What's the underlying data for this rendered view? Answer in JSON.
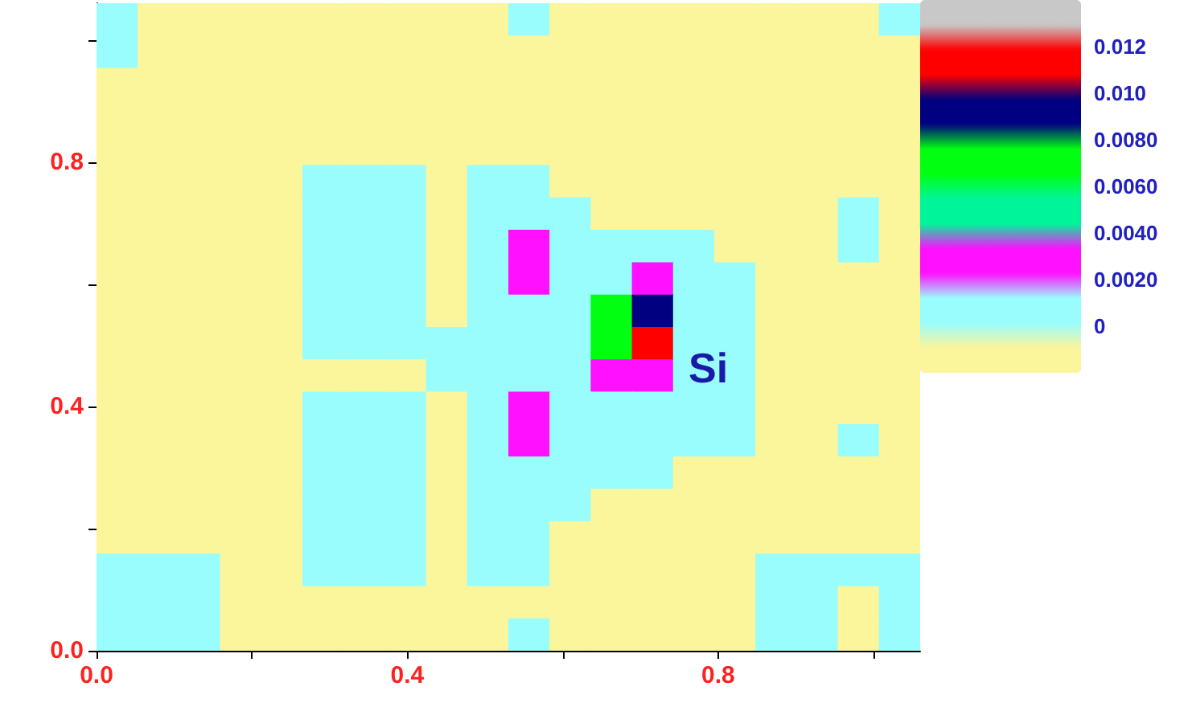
{
  "chart_data": {
    "type": "heatmap",
    "x": [
      0.0265,
      0.0795,
      0.1325,
      0.1855,
      0.2385,
      0.2915,
      0.3445,
      0.3975,
      0.4505,
      0.5035,
      0.5565,
      0.6095,
      0.6625,
      0.7155,
      0.7685,
      0.8215,
      0.8745,
      0.9275,
      0.9805,
      1.0335
    ],
    "y": [
      1.0335,
      0.9805,
      0.9275,
      0.8745,
      0.8215,
      0.7685,
      0.7155,
      0.6625,
      0.6095,
      0.5565,
      0.5035,
      0.4505,
      0.3975,
      0.3445,
      0.2915,
      0.2385,
      0.1855,
      0.1325,
      0.0795,
      0.0265
    ],
    "xlim": [
      0,
      1.06
    ],
    "xticks": [
      {
        "value": 0,
        "label": "0.0"
      },
      {
        "value": 0.2,
        "label": null
      },
      {
        "value": 0.4,
        "label": "0.4"
      },
      {
        "value": 0.6,
        "label": null
      },
      {
        "value": 0.8,
        "label": "0.8"
      },
      {
        "value": 1.0,
        "label": null
      }
    ],
    "ylim": [
      0,
      1.06
    ],
    "yticks": [
      {
        "value": 0,
        "label": "0.0"
      },
      {
        "value": 0.2,
        "label": null
      },
      {
        "value": 0.4,
        "label": "0.4"
      },
      {
        "value": 0.6,
        "label": null
      },
      {
        "value": 0.8,
        "label": "0.8"
      },
      {
        "value": 1.0,
        "label": null
      }
    ],
    "clim": [
      -0.002,
      0.014
    ],
    "cticks": [
      {
        "value": 0,
        "label": "0"
      },
      {
        "value": 0.002,
        "label": "0.0020"
      },
      {
        "value": 0.004,
        "label": "0.0040"
      },
      {
        "value": 0.006,
        "label": "0.0060"
      },
      {
        "value": 0.008,
        "label": "0.0080"
      },
      {
        "value": 0.01,
        "label": "0.010"
      },
      {
        "value": 0.012,
        "label": "0.012"
      }
    ],
    "colors": [
      "#fbf59c",
      "#99fdfd",
      "#ff10ff",
      "#00f59a",
      "#00ff10",
      "#000080",
      "#ff0000",
      "#c8c8c8"
    ],
    "annotations": [
      "Si"
    ],
    "cells": [
      [
        0.001,
        -0.001,
        -0.001,
        -0.001,
        -0.001,
        -0.001,
        -0.001,
        -0.001,
        -0.001,
        -0.001,
        0.001,
        -0.001,
        -0.001,
        -0.001,
        -0.001,
        -0.001,
        -0.001,
        -0.001,
        -0.001,
        0.001
      ],
      [
        0.001,
        -0.001,
        -0.001,
        -0.001,
        -0.001,
        -0.001,
        -0.001,
        -0.001,
        -0.001,
        -0.001,
        -0.001,
        -0.001,
        -0.001,
        -0.001,
        -0.001,
        -0.001,
        -0.001,
        -0.001,
        -0.001,
        -0.001
      ],
      [
        -0.001,
        -0.001,
        -0.001,
        -0.001,
        -0.001,
        -0.001,
        -0.001,
        -0.001,
        -0.001,
        -0.001,
        -0.001,
        -0.001,
        -0.001,
        -0.001,
        -0.001,
        -0.001,
        -0.001,
        -0.001,
        -0.001,
        -0.001
      ],
      [
        -0.001,
        -0.001,
        -0.001,
        -0.001,
        -0.001,
        -0.001,
        -0.001,
        -0.001,
        -0.001,
        -0.001,
        -0.001,
        -0.001,
        -0.001,
        -0.001,
        -0.001,
        -0.001,
        -0.001,
        -0.001,
        -0.001,
        -0.001
      ],
      [
        -0.001,
        -0.001,
        -0.001,
        -0.001,
        -0.001,
        -0.001,
        -0.001,
        -0.001,
        -0.001,
        -0.001,
        -0.001,
        -0.001,
        -0.001,
        -0.001,
        -0.001,
        -0.001,
        -0.001,
        -0.001,
        -0.001,
        -0.001
      ],
      [
        -0.001,
        -0.001,
        -0.001,
        -0.001,
        -0.001,
        0.001,
        0.001,
        0.001,
        -0.001,
        0.001,
        0.001,
        -0.001,
        -0.001,
        -0.001,
        -0.001,
        -0.001,
        -0.001,
        -0.001,
        -0.001,
        -0.001
      ],
      [
        -0.001,
        -0.001,
        -0.001,
        -0.001,
        -0.001,
        0.001,
        0.001,
        0.001,
        -0.001,
        0.001,
        0.001,
        0.001,
        -0.001,
        -0.001,
        -0.001,
        -0.001,
        -0.001,
        -0.001,
        0.001,
        -0.001
      ],
      [
        -0.001,
        -0.001,
        -0.001,
        -0.001,
        -0.001,
        0.001,
        0.001,
        0.001,
        -0.001,
        0.001,
        0.003,
        0.001,
        0.001,
        0.001,
        0.001,
        -0.001,
        -0.001,
        -0.001,
        0.001,
        -0.001
      ],
      [
        -0.001,
        -0.001,
        -0.001,
        -0.001,
        -0.001,
        0.001,
        0.001,
        0.001,
        -0.001,
        0.001,
        0.003,
        0.001,
        0.001,
        0.003,
        0.001,
        0.001,
        -0.001,
        -0.001,
        -0.001,
        -0.001
      ],
      [
        -0.001,
        -0.001,
        -0.001,
        -0.001,
        -0.001,
        0.001,
        0.001,
        0.001,
        -0.001,
        0.001,
        0.001,
        0.001,
        0.007,
        0.009,
        0.001,
        0.001,
        -0.001,
        -0.001,
        -0.001,
        -0.001
      ],
      [
        -0.001,
        -0.001,
        -0.001,
        -0.001,
        -0.001,
        0.001,
        0.001,
        0.001,
        0.001,
        0.001,
        0.001,
        0.001,
        0.007,
        0.011,
        0.001,
        0.001,
        -0.001,
        -0.001,
        -0.001,
        -0.001
      ],
      [
        -0.001,
        -0.001,
        -0.001,
        -0.001,
        -0.001,
        -0.001,
        -0.001,
        -0.001,
        0.001,
        0.001,
        0.001,
        0.001,
        0.003,
        0.003,
        0.001,
        0.001,
        -0.001,
        -0.001,
        -0.001,
        -0.001
      ],
      [
        -0.001,
        -0.001,
        -0.001,
        -0.001,
        -0.001,
        0.001,
        0.001,
        0.001,
        -0.001,
        0.001,
        0.003,
        0.001,
        0.001,
        0.001,
        0.001,
        0.001,
        -0.001,
        -0.001,
        -0.001,
        -0.001
      ],
      [
        -0.001,
        -0.001,
        -0.001,
        -0.001,
        -0.001,
        0.001,
        0.001,
        0.001,
        -0.001,
        0.001,
        0.003,
        0.001,
        0.001,
        0.001,
        0.001,
        0.001,
        -0.001,
        -0.001,
        0.001,
        -0.001
      ],
      [
        -0.001,
        -0.001,
        -0.001,
        -0.001,
        -0.001,
        0.001,
        0.001,
        0.001,
        -0.001,
        0.001,
        0.001,
        0.001,
        0.001,
        0.001,
        -0.001,
        -0.001,
        -0.001,
        -0.001,
        -0.001,
        -0.001
      ],
      [
        -0.001,
        -0.001,
        -0.001,
        -0.001,
        -0.001,
        0.001,
        0.001,
        0.001,
        -0.001,
        0.001,
        0.001,
        0.001,
        -0.001,
        -0.001,
        -0.001,
        -0.001,
        -0.001,
        -0.001,
        -0.001,
        -0.001
      ],
      [
        -0.001,
        -0.001,
        -0.001,
        -0.001,
        -0.001,
        0.001,
        0.001,
        0.001,
        -0.001,
        0.001,
        0.001,
        -0.001,
        -0.001,
        -0.001,
        -0.001,
        -0.001,
        -0.001,
        -0.001,
        -0.001,
        -0.001
      ],
      [
        0.001,
        0.001,
        0.001,
        -0.001,
        -0.001,
        0.001,
        0.001,
        0.001,
        -0.001,
        0.001,
        0.001,
        -0.001,
        -0.001,
        -0.001,
        -0.001,
        -0.001,
        0.001,
        0.001,
        0.001,
        0.001
      ],
      [
        0.001,
        0.001,
        0.001,
        -0.001,
        -0.001,
        -0.001,
        -0.001,
        -0.001,
        -0.001,
        -0.001,
        -0.001,
        -0.001,
        -0.001,
        -0.001,
        -0.001,
        -0.001,
        0.001,
        0.001,
        -0.001,
        0.001
      ],
      [
        0.001,
        0.001,
        0.001,
        -0.001,
        -0.001,
        -0.001,
        -0.001,
        -0.001,
        -0.001,
        -0.001,
        0.001,
        -0.001,
        -0.001,
        -0.001,
        -0.001,
        -0.001,
        0.001,
        0.001,
        -0.001,
        0.001
      ]
    ]
  }
}
